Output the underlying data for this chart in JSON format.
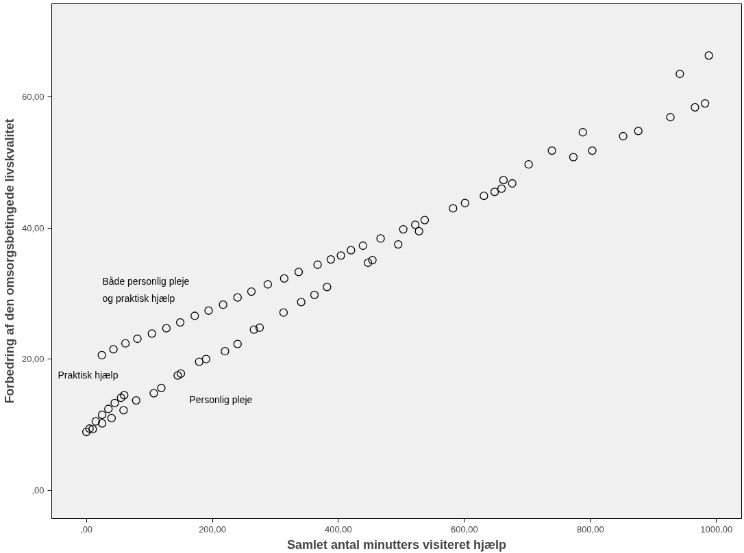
{
  "chart_data": {
    "type": "scatter",
    "xlabel": "Samlet antal minutters visiteret hjælp",
    "ylabel": "Forbedring af den omsorgsbetingede livskvalitet",
    "xlim": [
      -55,
      1040
    ],
    "ylim": [
      -4.3,
      74.2
    ],
    "xticks": [
      {
        "value": 0,
        "label": ",00"
      },
      {
        "value": 200,
        "label": "200,00"
      },
      {
        "value": 400,
        "label": "400,00"
      },
      {
        "value": 600,
        "label": "600,00"
      },
      {
        "value": 800,
        "label": "800,00"
      },
      {
        "value": 1000,
        "label": "1000,00"
      }
    ],
    "yticks": [
      {
        "value": 0,
        "label": ",00"
      },
      {
        "value": 20,
        "label": "20,00"
      },
      {
        "value": 40,
        "label": "40,00"
      },
      {
        "value": 60,
        "label": "60,00"
      }
    ],
    "grid": false,
    "marker": "circle",
    "x": [
      24.6,
      43,
      62,
      81,
      104,
      127,
      149,
      172,
      194,
      217,
      240,
      262,
      288,
      314,
      337,
      367,
      388,
      404,
      420,
      439,
      467,
      503,
      522,
      537,
      582,
      601,
      631,
      648,
      659,
      662,
      676,
      702,
      739,
      773,
      788,
      803,
      852,
      876,
      927,
      966,
      982,
      942,
      988,
      0,
      5,
      15,
      25,
      35,
      45,
      55,
      60,
      10,
      25,
      40,
      59,
      79,
      107,
      119,
      145,
      150,
      179,
      190,
      220,
      240,
      266,
      275,
      313,
      341,
      362,
      382,
      447,
      454,
      495,
      528
    ],
    "series": [
      {
        "color": "#000000",
        "values": [
          20.6,
          21.5,
          22.4,
          23.1,
          23.9,
          24.7,
          25.6,
          26.6,
          27.4,
          28.3,
          29.4,
          30.3,
          31.4,
          32.3,
          33.3,
          34.4,
          35.2,
          35.8,
          36.6,
          37.3,
          38.4,
          39.8,
          40.5,
          41.2,
          43,
          43.8,
          44.9,
          45.5,
          46,
          47.3,
          46.8,
          49.7,
          51.8,
          50.8,
          54.6,
          51.8,
          54,
          54.8,
          56.9,
          58.4,
          59,
          63.5,
          66.3,
          8.9,
          9.4,
          10.5,
          11.5,
          12.4,
          13.3,
          14.1,
          14.5,
          9.3,
          10.2,
          11.0,
          12.2,
          13.7,
          14.8,
          15.6,
          17.5,
          17.8,
          19.6,
          20,
          21.2,
          22.3,
          24.5,
          24.8,
          27.1,
          28.7,
          29.8,
          31.0,
          34.7,
          35.1,
          37.5,
          39.5
        ]
      }
    ],
    "annotations": [
      "Både personlig pleje\nog praktisk hjælp",
      "Praktisk hjælp",
      "Personlig pleje"
    ]
  }
}
